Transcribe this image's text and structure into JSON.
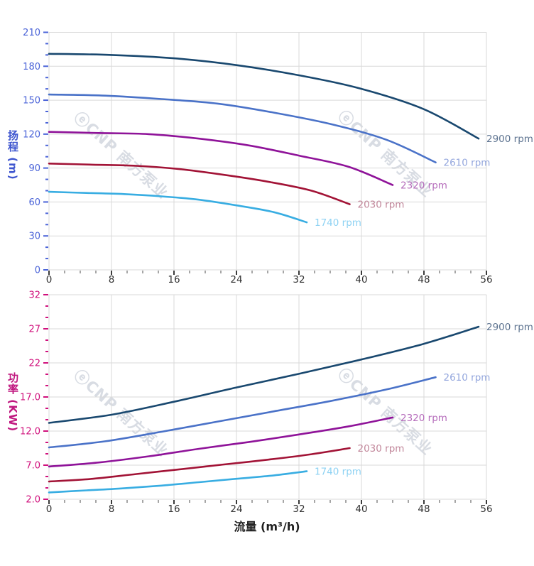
{
  "watermark": {
    "text": "ⓔCNP 南方泵业",
    "color": "rgba(157,167,186,0.40)"
  },
  "x_axis": {
    "min": 0,
    "max": 56,
    "major_step": 8,
    "minor_step": 2,
    "tick_labels": [
      "0",
      "8",
      "16",
      "24",
      "32",
      "40",
      "48",
      "56"
    ],
    "tick_label_color": "#333333",
    "title": "流量 (m³/h)",
    "title_color": "#1f1f1f"
  },
  "chart_data": [
    {
      "type": "line",
      "name": "head-vs-flow",
      "ylabel": "扬程 (m)",
      "xlabel": "",
      "axis_color": "#3f56cf",
      "tick_label_color": "#4a63d8",
      "ylim": [
        0,
        210
      ],
      "xlim": [
        0,
        56
      ],
      "grid": true,
      "y_ticks": [
        {
          "v": 0,
          "label": "0"
        },
        {
          "v": 30,
          "label": "30"
        },
        {
          "v": 60,
          "label": "60"
        },
        {
          "v": 90,
          "label": "90"
        },
        {
          "v": 120,
          "label": "120"
        },
        {
          "v": 150,
          "label": "150"
        },
        {
          "v": 180,
          "label": "180"
        },
        {
          "v": 210,
          "label": "210"
        }
      ],
      "series": [
        {
          "name": "2900 rpm",
          "color": "#19486f",
          "label_color": "#5d7390",
          "x": [
            0,
            8,
            16,
            24,
            32,
            40,
            48,
            55
          ],
          "y": [
            191,
            190,
            187,
            181,
            172,
            160,
            142,
            116
          ]
        },
        {
          "name": "2610 rpm",
          "color": "#4a72c8",
          "label_color": "#93a6dd",
          "x": [
            0,
            7.2,
            14.4,
            21.6,
            28.8,
            36,
            43.2,
            49.5
          ],
          "y": [
            155,
            154,
            151,
            147,
            139,
            129,
            115,
            95
          ]
        },
        {
          "name": "2320 rpm",
          "color": "#8f1399",
          "label_color": "#b56cbb",
          "x": [
            0,
            6.4,
            12.8,
            19.2,
            25.6,
            32,
            38.4,
            44
          ],
          "y": [
            122,
            121,
            120,
            116,
            110,
            101,
            91,
            75
          ]
        },
        {
          "name": "2030 rpm",
          "color": "#a21336",
          "label_color": "#c2879b",
          "x": [
            0,
            5.6,
            11.2,
            16.8,
            22.4,
            28,
            33.6,
            38.5
          ],
          "y": [
            94,
            93,
            92,
            89,
            84,
            78,
            70,
            58
          ]
        },
        {
          "name": "1740 rpm",
          "color": "#38ade2",
          "label_color": "#8ed2f3",
          "x": [
            0,
            4.8,
            9.6,
            14.4,
            19.2,
            24,
            28.8,
            33
          ],
          "y": [
            69,
            68,
            67,
            65,
            62,
            57,
            51,
            42
          ]
        }
      ]
    },
    {
      "type": "line",
      "name": "power-vs-flow",
      "ylabel": "功率 (KW)",
      "xlabel": "流量 (m³/h)",
      "axis_color": "#c0177f",
      "tick_label_color": "#d0107c",
      "ylim": [
        2,
        32
      ],
      "xlim": [
        0,
        56
      ],
      "grid": true,
      "y_ticks": [
        {
          "v": 2,
          "label": "2.0"
        },
        {
          "v": 7,
          "label": "7.0"
        },
        {
          "v": 12,
          "label": "12.0"
        },
        {
          "v": 17,
          "label": "17.0"
        },
        {
          "v": 22,
          "label": "22"
        },
        {
          "v": 27,
          "label": "27"
        },
        {
          "v": 32,
          "label": "32"
        }
      ],
      "series": [
        {
          "name": "2900 rpm",
          "color": "#19486f",
          "label_color": "#5d7390",
          "x": [
            0,
            8,
            16,
            24,
            32,
            40,
            48,
            55
          ],
          "y": [
            13.2,
            14.4,
            16.3,
            18.4,
            20.4,
            22.5,
            24.8,
            27.3
          ]
        },
        {
          "name": "2610 rpm",
          "color": "#4a72c8",
          "label_color": "#93a6dd",
          "x": [
            0,
            7.2,
            14.4,
            21.6,
            28.8,
            36,
            43.2,
            49.5
          ],
          "y": [
            9.6,
            10.5,
            11.9,
            13.4,
            14.9,
            16.4,
            18.1,
            19.9
          ]
        },
        {
          "name": "2320 rpm",
          "color": "#8f1399",
          "label_color": "#b56cbb",
          "x": [
            0,
            6.4,
            12.8,
            19.2,
            25.6,
            32,
            38.4,
            44
          ],
          "y": [
            6.8,
            7.4,
            8.3,
            9.4,
            10.4,
            11.5,
            12.7,
            14.0
          ]
        },
        {
          "name": "2030 rpm",
          "color": "#a21336",
          "label_color": "#c2879b",
          "x": [
            0,
            5.6,
            11.2,
            16.8,
            22.4,
            28,
            33.6,
            38.5
          ],
          "y": [
            4.6,
            5.0,
            5.7,
            6.4,
            7.1,
            7.8,
            8.6,
            9.5
          ]
        },
        {
          "name": "1740 rpm",
          "color": "#38ade2",
          "label_color": "#8ed2f3",
          "x": [
            0,
            4.8,
            9.6,
            14.4,
            19.2,
            24,
            28.8,
            33
          ],
          "y": [
            3.0,
            3.3,
            3.6,
            4.0,
            4.5,
            5.0,
            5.5,
            6.1
          ]
        }
      ]
    }
  ]
}
